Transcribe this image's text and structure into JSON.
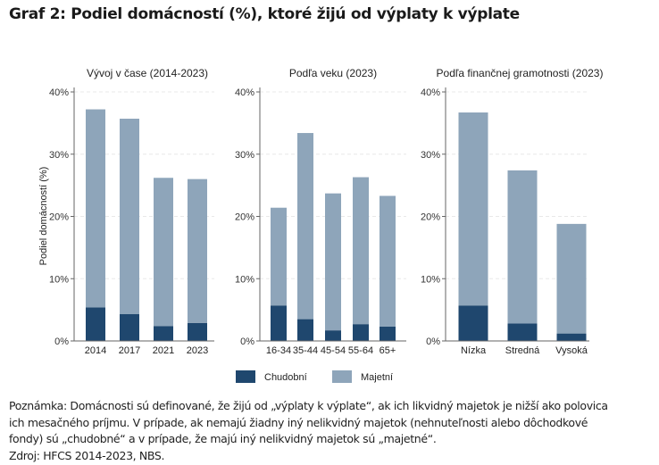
{
  "title": "Graf 2: Podiel domácností (%), ktoré žijú od výplaty k výplate",
  "chart_data": [
    {
      "type": "bar",
      "stacked": true,
      "title": "Vývoj v čase (2014-2023)",
      "ylabel": "Podiel domácností (%)",
      "xlabel": "",
      "ylim": [
        0,
        40
      ],
      "yticks": [
        "0%",
        "10%",
        "20%",
        "30%",
        "40%"
      ],
      "categories": [
        "2014",
        "2017",
        "2021",
        "2023"
      ],
      "series": [
        {
          "name": "Chudobní",
          "values": [
            5.4,
            4.3,
            2.4,
            2.9
          ]
        },
        {
          "name": "Majetní",
          "values": [
            31.8,
            31.4,
            23.8,
            23.1
          ]
        }
      ]
    },
    {
      "type": "bar",
      "stacked": true,
      "title": "Podľa veku (2023)",
      "ylabel": "",
      "xlabel": "",
      "ylim": [
        0,
        40
      ],
      "yticks": [
        "0%",
        "10%",
        "20%",
        "30%",
        "40%"
      ],
      "categories": [
        "16-34",
        "35-44",
        "45-54",
        "55-64",
        "65+"
      ],
      "series": [
        {
          "name": "Chudobní",
          "values": [
            5.7,
            3.5,
            1.7,
            2.7,
            2.3
          ]
        },
        {
          "name": "Majetní",
          "values": [
            15.7,
            29.9,
            22.0,
            23.6,
            21.0
          ]
        }
      ]
    },
    {
      "type": "bar",
      "stacked": true,
      "title": "Podľa finančnej gramotnosti (2023)",
      "ylabel": "",
      "xlabel": "",
      "ylim": [
        0,
        40
      ],
      "yticks": [
        "0%",
        "10%",
        "20%",
        "30%",
        "40%"
      ],
      "categories": [
        "Nízka",
        "Stredná",
        "Vysoká"
      ],
      "series": [
        {
          "name": "Chudobní",
          "values": [
            5.7,
            2.8,
            1.2
          ]
        },
        {
          "name": "Majetní",
          "values": [
            31.0,
            24.6,
            17.6
          ]
        }
      ]
    }
  ],
  "legend": {
    "position": "bottom",
    "items": [
      "Chudobní",
      "Majetní"
    ]
  },
  "colors": {
    "Chudobní": "#1f476e",
    "Majetní": "#8ea5ba"
  },
  "note": [
    "Poznámka: Domácnosti sú definované, že žijú od „výplaty k výplate“, ak ich likvidný majetok je nižší ako polovica",
    "ich mesačného príjmu. V prípade, ak nemajú žiadny iný nelikvidný majetok (nehnuteľnosti alebo dôchodkové",
    "fondy) sú „chudobné“ a v prípade, že majú iný nelikvidný majetok sú „majetné“.",
    "Zdroj: HFCS 2014-2023, NBS."
  ]
}
